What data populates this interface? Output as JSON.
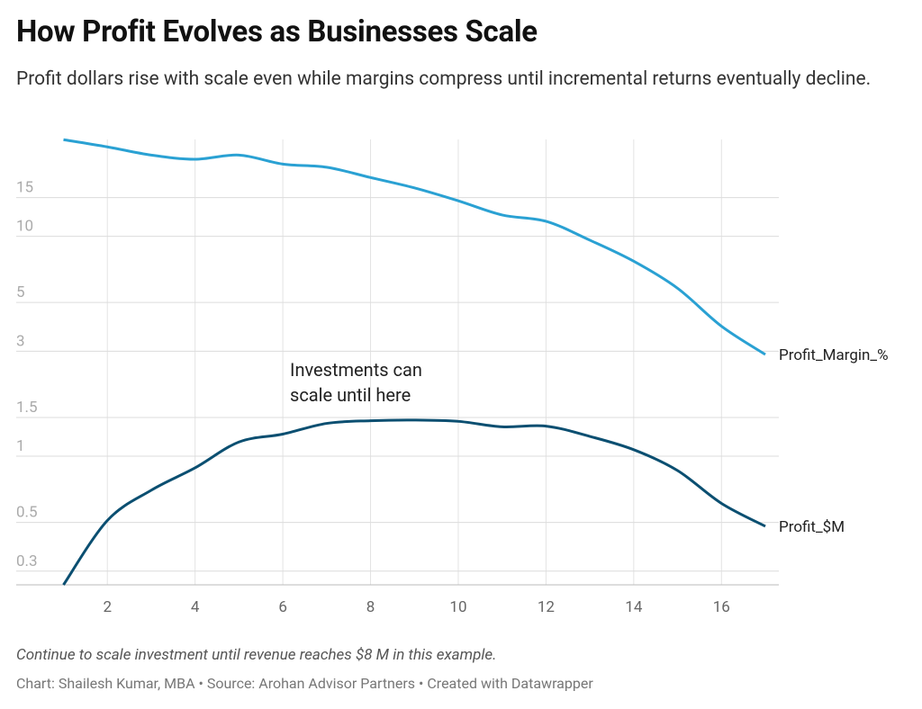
{
  "chart_data": {
    "type": "line",
    "title": "How Profit Evolves as Businesses Scale",
    "subtitle": "Profit dollars rise with scale even while margins compress until incremental returns eventually decline.",
    "annotation": "Investments can scale until here",
    "note": "Continue to scale investment until revenue reaches $8 M in this example.",
    "credit": "Chart: Shailesh Kumar, MBA • Source: Arohan Advisor Partners • Created with Datawrapper",
    "x": [
      1,
      2,
      3,
      4,
      5,
      6,
      7,
      8,
      9,
      10,
      11,
      12,
      13,
      14,
      15,
      16,
      17
    ],
    "series": [
      {
        "name": "Profit_Margin_%",
        "color": "#2aa1d3",
        "values": [
          27.5,
          25.5,
          23.4,
          22.4,
          23.4,
          21.3,
          20.6,
          18.5,
          16.6,
          14.5,
          12.5,
          11.7,
          9.6,
          7.7,
          5.8,
          3.9,
          2.9
        ]
      },
      {
        "name": "Profit_$M",
        "color": "#0b4f71",
        "values": [
          0.26,
          0.51,
          0.7,
          0.885,
          1.16,
          1.26,
          1.41,
          1.45,
          1.46,
          1.44,
          1.36,
          1.37,
          1.23,
          1.07,
          0.86,
          0.61,
          0.48
        ]
      }
    ],
    "xlim": [
      1,
      17
    ],
    "xticks": [
      2,
      4,
      6,
      8,
      10,
      12,
      14,
      16
    ],
    "ylim": [
      0.26,
      30
    ],
    "yticks": [
      0.3,
      0.5,
      1,
      1.5,
      3,
      5,
      10,
      15
    ],
    "log_y": true,
    "grid": true
  }
}
